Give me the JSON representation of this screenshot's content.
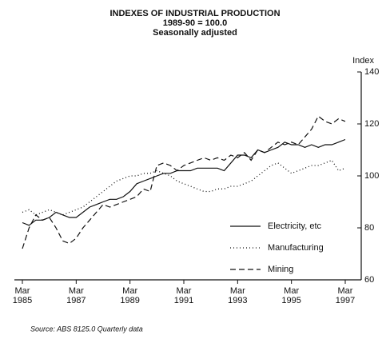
{
  "chart_data": {
    "type": "line",
    "title": "INDEXES OF INDUSTRIAL PRODUCTION",
    "subtitle": "1989-90 = 100.0",
    "subtitle2": "Seasonally adjusted",
    "ylabel": "Index",
    "source": "Source: ABS 8125.0 Quarterly data",
    "categories": [
      "Mar\n1985",
      null,
      null,
      null,
      null,
      null,
      null,
      null,
      "Mar\n1987",
      null,
      null,
      null,
      null,
      null,
      null,
      null,
      "Mar\n1989",
      null,
      null,
      null,
      null,
      null,
      null,
      null,
      "Mar\n1991",
      null,
      null,
      null,
      null,
      null,
      null,
      null,
      "Mar\n1993",
      null,
      null,
      null,
      null,
      null,
      null,
      null,
      "Mar\n1995",
      null,
      null,
      null,
      null,
      null,
      null,
      null,
      "Mar\n1997"
    ],
    "series": [
      {
        "name": "Electricity, etc",
        "color": "#111111",
        "style": "solid",
        "values": [
          82,
          81,
          83,
          83,
          84,
          86,
          85,
          84,
          84,
          86,
          88,
          89,
          90,
          91,
          91,
          92,
          94,
          97,
          98,
          99,
          100,
          101,
          101,
          102,
          102,
          102,
          103,
          103,
          103,
          103,
          102,
          105,
          108,
          108,
          107,
          110,
          109,
          110,
          111,
          113,
          112,
          112,
          111,
          112,
          111,
          112,
          112,
          113,
          114
        ]
      },
      {
        "name": "Manufacturing",
        "color": "#111111",
        "style": "dotted",
        "values": [
          86,
          87,
          85,
          86,
          87,
          86,
          85,
          86,
          87,
          88,
          90,
          92,
          94,
          96,
          98,
          99,
          100,
          100,
          101,
          101,
          102,
          101,
          100,
          98,
          97,
          96,
          95,
          94,
          94,
          95,
          95,
          96,
          96,
          97,
          98,
          100,
          102,
          104,
          105,
          103,
          101,
          102,
          103,
          104,
          104,
          105,
          106,
          102,
          103
        ]
      },
      {
        "name": "Mining",
        "color": "#111111",
        "style": "dashed",
        "values": [
          72,
          80,
          85,
          83,
          84,
          80,
          75,
          74,
          76,
          80,
          83,
          86,
          89,
          88,
          89,
          90,
          91,
          92,
          95,
          94,
          104,
          105,
          104,
          102,
          104,
          105,
          106,
          107,
          106,
          107,
          106,
          108,
          107,
          109,
          106,
          110,
          109,
          111,
          113,
          112,
          113,
          112,
          115,
          118,
          123,
          121,
          120,
          122,
          121
        ]
      }
    ],
    "ylim": [
      60,
      140
    ],
    "yticks": [
      60,
      80,
      100,
      120,
      140
    ],
    "grid": false
  }
}
